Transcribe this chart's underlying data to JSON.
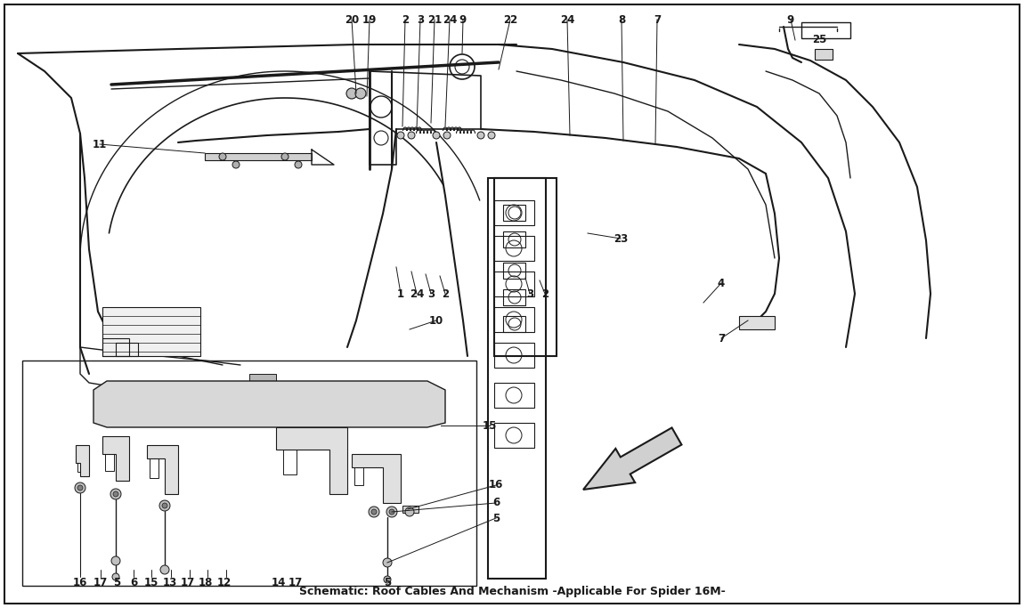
{
  "title": "Schematic: Roof Cables And Mechanism -Applicable For Spider 16M-",
  "bg_color": "#ffffff",
  "line_color": "#1a1a1a",
  "line_width": 1.0,
  "callout_fontsize": 8.5,
  "title_fontsize": 9,
  "fig_width": 11.5,
  "fig_height": 6.83,
  "dpi": 100
}
